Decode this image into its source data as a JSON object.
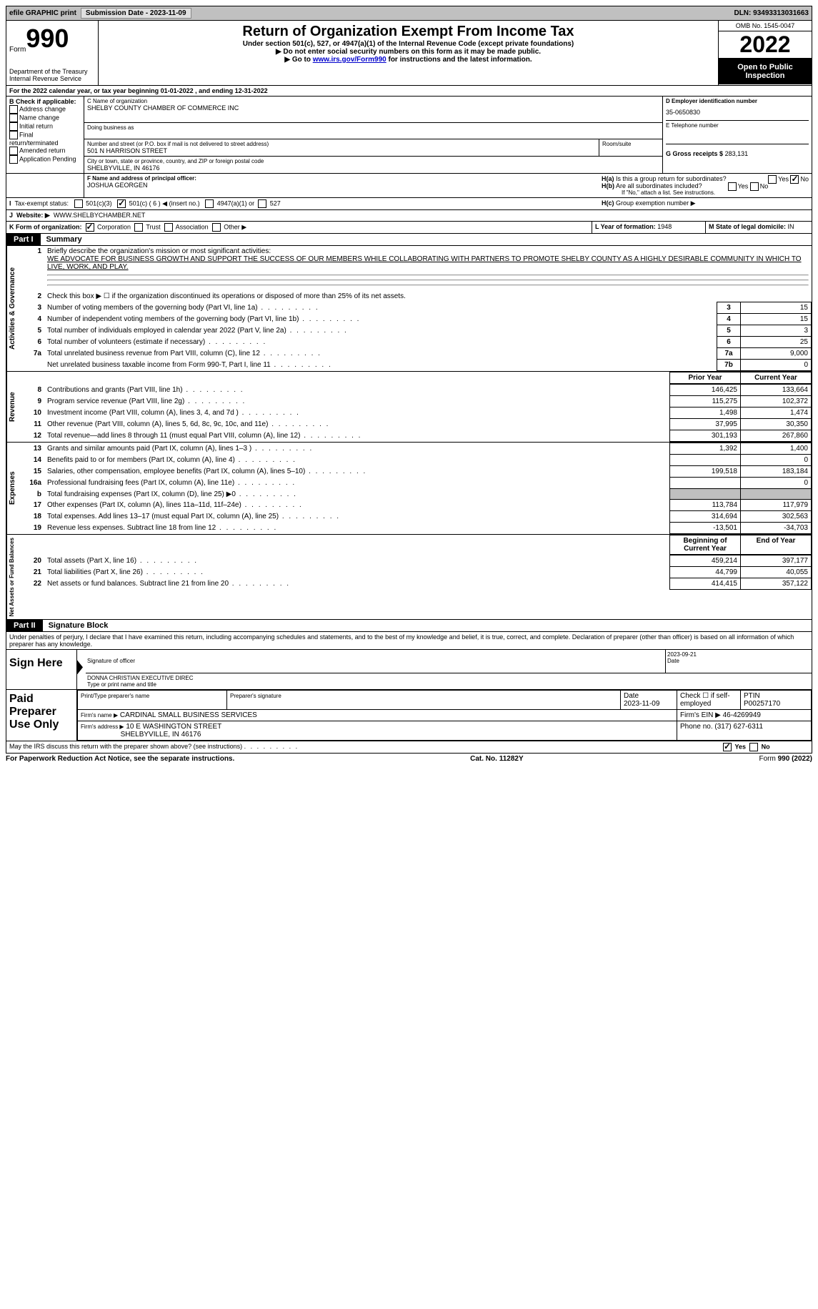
{
  "topbar": {
    "efile": "efile GRAPHIC print",
    "subdate_label": "Submission Date - 2023-11-09",
    "dln": "DLN: 93493313031663"
  },
  "header": {
    "form_prefix": "Form",
    "form_no": "990",
    "dept": "Department of the Treasury",
    "irs": "Internal Revenue Service",
    "title": "Return of Organization Exempt From Income Tax",
    "sub1": "Under section 501(c), 527, or 4947(a)(1) of the Internal Revenue Code (except private foundations)",
    "sub2": "▶ Do not enter social security numbers on this form as it may be made public.",
    "sub3_pre": "▶ Go to ",
    "sub3_link": "www.irs.gov/Form990",
    "sub3_post": " for instructions and the latest information.",
    "omb": "OMB No. 1545-0047",
    "year": "2022",
    "inspect": "Open to Public Inspection"
  },
  "a_line": "For the 2022 calendar year, or tax year beginning 01-01-2022      , and ending 12-31-2022",
  "b": {
    "label": "B Check if applicable:",
    "addr": "Address change",
    "name": "Name change",
    "init": "Initial return",
    "final": "Final return/terminated",
    "amend": "Amended return",
    "app": "Application Pending"
  },
  "c": {
    "name_label": "C Name of organization",
    "name": "SHELBY COUNTY CHAMBER OF COMMERCE INC",
    "dba_label": "Doing business as",
    "addr_label": "Number and street (or P.O. box if mail is not delivered to street address)",
    "room_label": "Room/suite",
    "addr": "501 N HARRISON STREET",
    "city_label": "City or town, state or province, country, and ZIP or foreign postal code",
    "city": "SHELBYVILLE, IN  46176"
  },
  "d": {
    "label": "D Employer identification number",
    "val": "35-0650830"
  },
  "e": {
    "label": "E Telephone number"
  },
  "g": {
    "label": "G Gross receipts $",
    "val": "283,131"
  },
  "f": {
    "label": "F Name and address of principal officer:",
    "val": "JOSHUA GEORGEN"
  },
  "h": {
    "a": "Is this a group return for subordinates?",
    "b": "Are all subordinates included?",
    "note": "If \"No,\" attach a list. See instructions.",
    "c": "Group exemption number ▶",
    "yes": "Yes",
    "no": "No"
  },
  "i": {
    "label": "Tax-exempt status:",
    "c3": "501(c)(3)",
    "c": "501(c) ( 6 ) ◀ (insert no.)",
    "a1": "4947(a)(1) or",
    "s527": "527"
  },
  "j": {
    "label": "Website: ▶",
    "val": "WWW.SHELBYCHAMBER.NET"
  },
  "k": {
    "label": "K Form of organization:",
    "corp": "Corporation",
    "trust": "Trust",
    "assoc": "Association",
    "other": "Other ▶"
  },
  "l": {
    "label": "L Year of formation:",
    "val": "1948"
  },
  "m": {
    "label": "M State of legal domicile:",
    "val": "IN"
  },
  "part1": {
    "label": "Part I",
    "title": "Summary"
  },
  "vlabels": {
    "gov": "Activities & Governance",
    "rev": "Revenue",
    "exp": "Expenses",
    "net": "Net Assets or Fund Balances"
  },
  "s1": {
    "l1": "Briefly describe the organization's mission or most significant activities:",
    "l1v": "WE ADVOCATE FOR BUSINESS GROWTH AND SUPPORT THE SUCCESS OF OUR MEMBERS WHILE COLLABORATING WITH PARTNERS TO PROMOTE SHELBY COUNTY AS A HIGHLY DESIRABLE COMMUNITY IN WHICH TO LIVE, WORK, AND PLAY.",
    "l2": "Check this box ▶ ☐  if the organization discontinued its operations or disposed of more than 25% of its net assets.",
    "rows": [
      {
        "n": "3",
        "t": "Number of voting members of the governing body (Part VI, line 1a)",
        "box": "3",
        "v": "15"
      },
      {
        "n": "4",
        "t": "Number of independent voting members of the governing body (Part VI, line 1b)",
        "box": "4",
        "v": "15"
      },
      {
        "n": "5",
        "t": "Total number of individuals employed in calendar year 2022 (Part V, line 2a)",
        "box": "5",
        "v": "3"
      },
      {
        "n": "6",
        "t": "Total number of volunteers (estimate if necessary)",
        "box": "6",
        "v": "25"
      },
      {
        "n": "7a",
        "t": "Total unrelated business revenue from Part VIII, column (C), line 12",
        "box": "7a",
        "v": "9,000"
      },
      {
        "n": "",
        "t": "Net unrelated business taxable income from Form 990-T, Part I, line 11",
        "box": "7b",
        "v": "0"
      }
    ]
  },
  "cols": {
    "prior": "Prior Year",
    "curr": "Current Year",
    "boy": "Beginning of Current Year",
    "eoy": "End of Year"
  },
  "rev": [
    {
      "n": "8",
      "t": "Contributions and grants (Part VIII, line 1h)",
      "p": "146,425",
      "c": "133,664"
    },
    {
      "n": "9",
      "t": "Program service revenue (Part VIII, line 2g)",
      "p": "115,275",
      "c": "102,372"
    },
    {
      "n": "10",
      "t": "Investment income (Part VIII, column (A), lines 3, 4, and 7d )",
      "p": "1,498",
      "c": "1,474"
    },
    {
      "n": "11",
      "t": "Other revenue (Part VIII, column (A), lines 5, 6d, 8c, 9c, 10c, and 11e)",
      "p": "37,995",
      "c": "30,350"
    },
    {
      "n": "12",
      "t": "Total revenue—add lines 8 through 11 (must equal Part VIII, column (A), line 12)",
      "p": "301,193",
      "c": "267,860"
    }
  ],
  "exp": [
    {
      "n": "13",
      "t": "Grants and similar amounts paid (Part IX, column (A), lines 1–3 )",
      "p": "1,392",
      "c": "1,400"
    },
    {
      "n": "14",
      "t": "Benefits paid to or for members (Part IX, column (A), line 4)",
      "p": "",
      "c": "0"
    },
    {
      "n": "15",
      "t": "Salaries, other compensation, employee benefits (Part IX, column (A), lines 5–10)",
      "p": "199,518",
      "c": "183,184"
    },
    {
      "n": "16a",
      "t": "Professional fundraising fees (Part IX, column (A), line 11e)",
      "p": "",
      "c": "0"
    },
    {
      "n": "b",
      "t": "Total fundraising expenses (Part IX, column (D), line 25) ▶0",
      "p": "GRAY",
      "c": "GRAY"
    },
    {
      "n": "17",
      "t": "Other expenses (Part IX, column (A), lines 11a–11d, 11f–24e)",
      "p": "113,784",
      "c": "117,979"
    },
    {
      "n": "18",
      "t": "Total expenses. Add lines 13–17 (must equal Part IX, column (A), line 25)",
      "p": "314,694",
      "c": "302,563"
    },
    {
      "n": "19",
      "t": "Revenue less expenses. Subtract line 18 from line 12",
      "p": "-13,501",
      "c": "-34,703"
    }
  ],
  "net": [
    {
      "n": "20",
      "t": "Total assets (Part X, line 16)",
      "p": "459,214",
      "c": "397,177"
    },
    {
      "n": "21",
      "t": "Total liabilities (Part X, line 26)",
      "p": "44,799",
      "c": "40,055"
    },
    {
      "n": "22",
      "t": "Net assets or fund balances. Subtract line 21 from line 20",
      "p": "414,415",
      "c": "357,122"
    }
  ],
  "part2": {
    "label": "Part II",
    "title": "Signature Block"
  },
  "sig": {
    "decl": "Under penalties of perjury, I declare that I have examined this return, including accompanying schedules and statements, and to the best of my knowledge and belief, it is true, correct, and complete. Declaration of preparer (other than officer) is based on all information of which preparer has any knowledge.",
    "sign_here": "Sign Here",
    "sig_officer": "Signature of officer",
    "date": "Date",
    "date_val": "2023-09-21",
    "name_title": "DONNA CHRISTIAN EXECUTIVE DIREC",
    "type_name": "Type or print name and title",
    "paid": "Paid Preparer Use Only",
    "prep_name_label": "Print/Type preparer's name",
    "prep_sig_label": "Preparer's signature",
    "prep_date": "2023-11-09",
    "check_self": "Check ☐ if self-employed",
    "ptin_label": "PTIN",
    "ptin": "P00257170",
    "firm_name_label": "Firm's name    ▶",
    "firm_name": "CARDINAL SMALL BUSINESS SERVICES",
    "firm_ein_label": "Firm's EIN ▶",
    "firm_ein": "46-4269949",
    "firm_addr_label": "Firm's address ▶",
    "firm_addr1": "10 E WASHINGTON STREET",
    "firm_addr2": "SHELBYVILLE, IN  46176",
    "phone_label": "Phone no.",
    "phone": "(317) 627-6311",
    "discuss": "May the IRS discuss this return with the preparer shown above? (see instructions)"
  },
  "footer": {
    "pra": "For Paperwork Reduction Act Notice, see the separate instructions.",
    "cat": "Cat. No. 11282Y",
    "form": "Form 990 (2022)"
  }
}
